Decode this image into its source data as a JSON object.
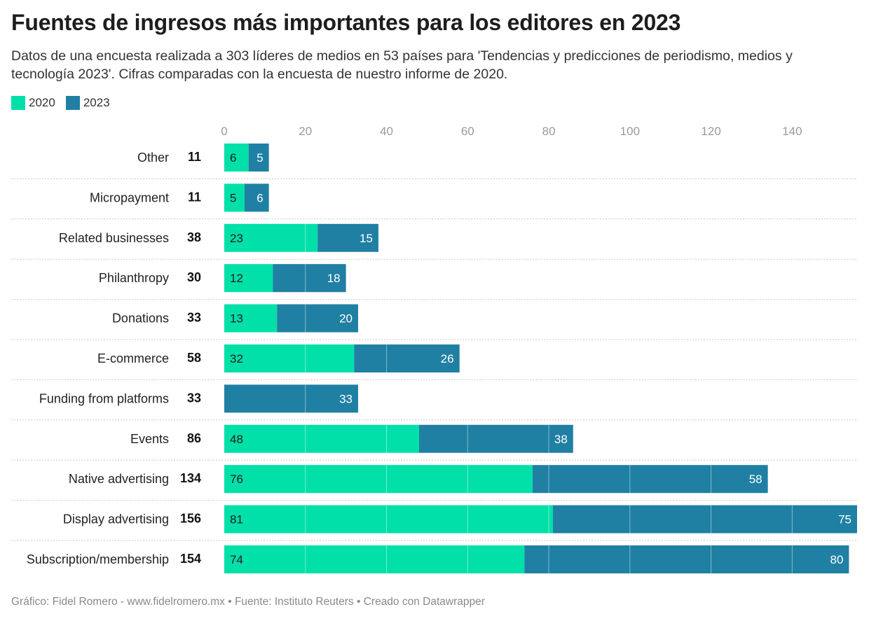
{
  "title": "Fuentes de ingresos más importantes para los editores en 2023",
  "subtitle": "Datos de una encuesta realizada a 303 líderes de medios en 53 países para 'Tendencias y predicciones de periodismo, medios y tecnología 2023'. Cifras comparadas con la encuesta de nuestro informe de 2020.",
  "footer": "Gráfico: Fidel Romero - www.fidelromero.mx • Fuente: Instituto Reuters • Creado con Datawrapper",
  "colors": {
    "series_2020": "#00e0a8",
    "series_2023": "#1f80a3",
    "grid": "#d9d9d9",
    "tick": "#9a9a9a"
  },
  "chart_data": {
    "type": "bar",
    "orientation": "horizontal",
    "stacked": true,
    "categories": [
      "Other",
      "Micropayment",
      "Related businesses",
      "Philanthropy",
      "Donations",
      "E-commerce",
      "Funding from platforms",
      "Events",
      "Native advertising",
      "Display advertising",
      "Subscription/membership"
    ],
    "totals": [
      11,
      11,
      38,
      30,
      33,
      58,
      33,
      86,
      134,
      156,
      154
    ],
    "series": [
      {
        "name": "2020",
        "color": "#00e0a8",
        "values": [
          6,
          5,
          23,
          12,
          13,
          32,
          0,
          48,
          76,
          81,
          74
        ]
      },
      {
        "name": "2023",
        "color": "#1f80a3",
        "values": [
          5,
          6,
          15,
          18,
          20,
          26,
          33,
          38,
          58,
          75,
          80
        ]
      }
    ],
    "xlim": [
      0,
      156
    ],
    "xticks": [
      0,
      20,
      40,
      60,
      80,
      100,
      120,
      140
    ],
    "grid": true,
    "legend_position": "top-left"
  }
}
